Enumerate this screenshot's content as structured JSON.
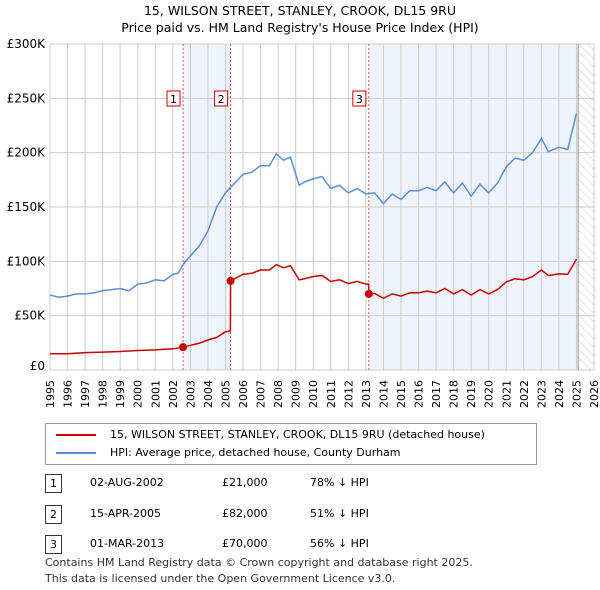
{
  "title": "15, WILSON STREET, STANLEY, CROOK, DL15 9RU",
  "subtitle": "Price paid vs. HM Land Registry's House Price Index (HPI)",
  "colors": {
    "property": "#cc0000",
    "hpi": "#5b8fd4",
    "shade": "#eef3fc",
    "marker_line": "#e05050"
  },
  "chart_data": {
    "type": "line",
    "title": "15, WILSON STREET, STANLEY, CROOK, DL15 9RU",
    "xlim": [
      1995,
      2026
    ],
    "ylim": [
      0,
      300000
    ],
    "yticks": [
      {
        "v": 0,
        "l": "£0"
      },
      {
        "v": 50000,
        "l": "£50K"
      },
      {
        "v": 100000,
        "l": "£100K"
      },
      {
        "v": 150000,
        "l": "£150K"
      },
      {
        "v": 200000,
        "l": "£200K"
      },
      {
        "v": 250000,
        "l": "£250K"
      },
      {
        "v": 300000,
        "l": "£300K"
      }
    ],
    "xticks": [
      "1995",
      "1996",
      "1997",
      "1998",
      "1999",
      "2000",
      "2001",
      "2002",
      "2003",
      "2004",
      "2005",
      "2006",
      "2007",
      "2008",
      "2009",
      "2010",
      "2011",
      "2012",
      "2013",
      "2014",
      "2015",
      "2016",
      "2017",
      "2018",
      "2019",
      "2020",
      "2021",
      "2022",
      "2023",
      "2024",
      "2025",
      "2026"
    ],
    "grid": true,
    "forecast_start": 2025.1,
    "series": [
      {
        "name": "HPI: Average price, detached house, County Durham",
        "x": [
          1995,
          1995.5,
          1996,
          1996.5,
          1997,
          1997.5,
          1998,
          1998.5,
          1999,
          1999.5,
          2000,
          2000.5,
          2001,
          2001.5,
          2002,
          2002.3,
          2002.58,
          2003,
          2003.5,
          2004,
          2004.5,
          2005,
          2005.29,
          2006,
          2006.5,
          2007,
          2007.5,
          2007.9,
          2008.3,
          2008.7,
          2009.2,
          2009.5,
          2010,
          2010.5,
          2011,
          2011.5,
          2012,
          2012.5,
          2013,
          2013.5,
          2014,
          2014.5,
          2015,
          2015.5,
          2016,
          2016.5,
          2017,
          2017.5,
          2018,
          2018.5,
          2019,
          2019.5,
          2020,
          2020.5,
          2021,
          2021.5,
          2022,
          2022.5,
          2023,
          2023.4,
          2024,
          2024.5,
          2025
        ],
        "y": [
          69000,
          67000,
          68000,
          70000,
          70000,
          71000,
          73000,
          74000,
          75000,
          73000,
          79000,
          80000,
          83000,
          82000,
          88000,
          89000,
          97000,
          105000,
          114000,
          128000,
          150000,
          163000,
          168000,
          180000,
          182000,
          188000,
          188000,
          199000,
          193000,
          196000,
          170000,
          173000,
          176000,
          178000,
          167000,
          170000,
          163000,
          167000,
          162000,
          163000,
          153000,
          162000,
          157000,
          165000,
          165000,
          168000,
          165000,
          173000,
          163000,
          172000,
          160000,
          171000,
          163000,
          172000,
          187000,
          195000,
          193000,
          200000,
          213000,
          201000,
          205000,
          203000,
          236000
        ]
      },
      {
        "name": "15, WILSON STREET, STANLEY, CROOK, DL15 9RU (detached house)",
        "x": [
          1995,
          1996,
          1997,
          1998,
          1999,
          2000,
          2001,
          2002,
          2002.58,
          2003,
          2003.5,
          2004,
          2004.5,
          2005,
          2005.28,
          2005.29,
          2006,
          2006.5,
          2007,
          2007.5,
          2007.9,
          2008.3,
          2008.7,
          2009.2,
          2009.5,
          2010,
          2010.5,
          2011,
          2011.5,
          2012,
          2012.5,
          2013,
          2013.16,
          2013.17,
          2013.5,
          2014,
          2014.5,
          2015,
          2015.5,
          2016,
          2016.5,
          2017,
          2017.5,
          2018,
          2018.5,
          2019,
          2019.5,
          2020,
          2020.5,
          2021,
          2021.5,
          2022,
          2022.5,
          2023,
          2023.4,
          2024,
          2024.5,
          2025
        ],
        "y": [
          15000,
          15000,
          16000,
          16500,
          17000,
          18000,
          18500,
          19500,
          21000,
          22700,
          24600,
          27600,
          30000,
          35200,
          36000,
          82000,
          88000,
          89000,
          92000,
          92000,
          97000,
          94000,
          96000,
          83000,
          84000,
          86000,
          87000,
          81500,
          83000,
          79500,
          81500,
          79000,
          79000,
          70000,
          70400,
          66000,
          70000,
          68000,
          71000,
          71000,
          72600,
          71000,
          75000,
          70000,
          74000,
          69000,
          74000,
          70000,
          74000,
          81000,
          84000,
          83000,
          86000,
          92000,
          87000,
          88500,
          88000,
          102000
        ]
      }
    ],
    "sales": [
      {
        "n": "1",
        "x": 2002.58,
        "y": 21000
      },
      {
        "n": "2",
        "x": 2005.29,
        "y": 82000
      },
      {
        "n": "3",
        "x": 2013.17,
        "y": 70000
      }
    ]
  },
  "legend": {
    "property": "15, WILSON STREET, STANLEY, CROOK, DL15 9RU (detached house)",
    "hpi": "HPI: Average price, detached house, County Durham"
  },
  "transactions": [
    {
      "n": "1",
      "date": "02-AUG-2002",
      "price": "£21,000",
      "hpi": "78% ↓ HPI"
    },
    {
      "n": "2",
      "date": "15-APR-2005",
      "price": "£82,000",
      "hpi": "51% ↓ HPI"
    },
    {
      "n": "3",
      "date": "01-MAR-2013",
      "price": "£70,000",
      "hpi": "56% ↓ HPI"
    }
  ],
  "footer": [
    "Contains HM Land Registry data © Crown copyright and database right 2025.",
    "This data is licensed under the Open Government Licence v3.0."
  ]
}
